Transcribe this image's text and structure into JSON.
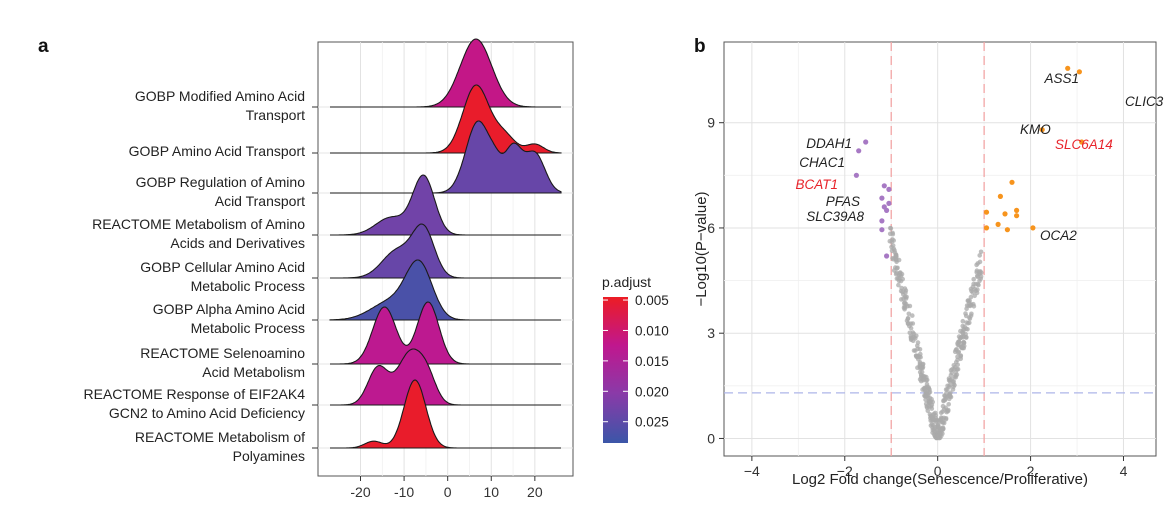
{
  "chart_data": [
    {
      "panel": "a",
      "type": "ridgeline",
      "xlim": [
        -27,
        26
      ],
      "x_ticks": [
        -20,
        -10,
        0,
        10,
        20
      ],
      "x_tick_labels": [
        "-20",
        "-10",
        "0",
        "10",
        "20"
      ],
      "grid": true,
      "legend": {
        "title": "p.adjust",
        "placement": "right",
        "range": [
          0.0045,
          0.0285
        ],
        "ticks": [
          0.005,
          0.01,
          0.015,
          0.02,
          0.025
        ],
        "tick_labels": [
          "0.005",
          "0.010",
          "0.015",
          "0.020",
          "0.025"
        ],
        "colors": [
          "#ec1c24",
          "#c0178e",
          "#8a3aa8",
          "#3b56a8"
        ]
      },
      "terms": [
        {
          "label": [
            "GOBP Modified Amino Acid",
            "Transport"
          ],
          "p_adjust": 0.012,
          "bumps": [
            [
              6.5,
              3.6,
              1.0
            ]
          ]
        },
        {
          "label": [
            "GOBP Amino Acid Transport"
          ],
          "p_adjust": 0.005,
          "bumps": [
            [
              6.5,
              3.0,
              1.0
            ],
            [
              13,
              2.5,
              0.25
            ],
            [
              20,
              2.0,
              0.13
            ]
          ]
        },
        {
          "label": [
            "GOBP Regulation of Amino",
            "Acid Transport"
          ],
          "p_adjust": 0.024,
          "bumps": [
            [
              7,
              2.8,
              1.0
            ],
            [
              15,
              2.0,
              0.62
            ],
            [
              20,
              2.3,
              0.55
            ],
            [
              11,
              1.5,
              0.2
            ]
          ]
        },
        {
          "label": [
            "REACTOME Metabolism of Amino",
            "Acids and Derivatives"
          ],
          "p_adjust": 0.023,
          "bumps": [
            [
              -5.5,
              2.5,
              1.0
            ],
            [
              -13,
              3.5,
              0.3
            ]
          ]
        },
        {
          "label": [
            "GOBP Cellular Amino Acid",
            "Metabolic Process"
          ],
          "p_adjust": 0.024,
          "bumps": [
            [
              -5.5,
              2.5,
              0.85
            ],
            [
              -11.5,
              3.5,
              0.5
            ]
          ]
        },
        {
          "label": [
            "GOBP Alpha Amino Acid",
            "Metabolic Process"
          ],
          "p_adjust": 0.027,
          "bumps": [
            [
              -6.5,
              3.0,
              1.0
            ],
            [
              -13,
              4.5,
              0.35
            ]
          ]
        },
        {
          "label": [
            "REACTOME Selenoamino",
            "Acid Metabolism"
          ],
          "p_adjust": 0.013,
          "bumps": [
            [
              -14.5,
              2.7,
              0.92
            ],
            [
              -4.5,
              2.5,
              1.0
            ]
          ]
        },
        {
          "label": [
            "REACTOME Response of EIF2AK4",
            "GCN2 to Amino Acid Deficiency"
          ],
          "p_adjust": 0.013,
          "bumps": [
            [
              -16,
              2.3,
              0.7
            ],
            [
              -8.5,
              3.0,
              1.0
            ],
            [
              -4.5,
              2.0,
              0.35
            ]
          ]
        },
        {
          "label": [
            "REACTOME Metabolism of",
            "Polyamines"
          ],
          "p_adjust": 0.005,
          "bumps": [
            [
              -7.5,
              2.5,
              1.0
            ],
            [
              -17,
              2.0,
              0.1
            ]
          ]
        }
      ]
    },
    {
      "panel": "b",
      "type": "scatter",
      "xlabel": "Log2 Fold change(Senescence/Proliferative)",
      "ylabel": "−Log10(P−value)",
      "xlim": [
        -4.6,
        4.7
      ],
      "ylim": [
        -0.5,
        11.3
      ],
      "x_ticks": [
        -4,
        -2,
        0,
        2,
        4
      ],
      "x_tick_labels": [
        "−4",
        "−2",
        "0",
        "2",
        "4"
      ],
      "y_ticks": [
        0,
        3,
        6,
        9
      ],
      "y_tick_labels": [
        "0",
        "3",
        "6",
        "9"
      ],
      "grid": true,
      "thresholds": {
        "x": [
          -1,
          1
        ],
        "y": 1.3
      },
      "colors": {
        "up": "#f7941d",
        "down": "#a779c4",
        "ns": "#a9a9a9",
        "highlight_label": "#e8242b",
        "label": "#222222",
        "vline": "#f2a5a5",
        "hline": "#aeb5e8"
      },
      "up": [
        [
          2.8,
          10.55
        ],
        [
          3.05,
          10.45
        ],
        [
          2.25,
          8.8
        ],
        [
          3.1,
          8.45
        ],
        [
          1.6,
          7.3
        ],
        [
          1.35,
          6.9
        ],
        [
          1.05,
          6.45
        ],
        [
          1.3,
          6.1
        ],
        [
          1.45,
          6.4
        ],
        [
          1.7,
          6.5
        ],
        [
          1.7,
          6.35
        ],
        [
          1.5,
          5.95
        ],
        [
          2.05,
          6.0
        ],
        [
          1.05,
          6.0
        ]
      ],
      "down": [
        [
          -1.55,
          8.45
        ],
        [
          -1.7,
          8.2
        ],
        [
          -1.75,
          7.5
        ],
        [
          -1.15,
          7.2
        ],
        [
          -1.05,
          7.1
        ],
        [
          -1.2,
          6.85
        ],
        [
          -1.05,
          6.7
        ],
        [
          -1.15,
          6.6
        ],
        [
          -1.1,
          6.5
        ],
        [
          -1.2,
          6.2
        ],
        [
          -1.2,
          5.95
        ],
        [
          -1.1,
          5.2
        ]
      ],
      "labels": [
        {
          "text": "ASS1",
          "x": 2.8,
          "y": 10.55,
          "highlight": false
        },
        {
          "text": "CLIC3",
          "x": 3.05,
          "y": 10.45,
          "highlight": false
        },
        {
          "text": "KMO",
          "x": 2.25,
          "y": 8.8,
          "highlight": false
        },
        {
          "text": "SLC6A14",
          "x": 3.1,
          "y": 8.45,
          "highlight": true
        },
        {
          "text": "OCA2",
          "x": 2.05,
          "y": 6.0,
          "highlight": false
        },
        {
          "text": "DDAH1",
          "x": -1.55,
          "y": 8.45,
          "highlight": false
        },
        {
          "text": "CHAC1",
          "x": -1.7,
          "y": 8.2,
          "highlight": false
        },
        {
          "text": "BCAT1",
          "x": -1.75,
          "y": 7.5,
          "highlight": true
        },
        {
          "text": "PFAS",
          "x": -1.15,
          "y": 7.2,
          "highlight": false
        },
        {
          "text": "SLC39A8",
          "x": -1.15,
          "y": 6.6,
          "highlight": false
        }
      ]
    }
  ]
}
